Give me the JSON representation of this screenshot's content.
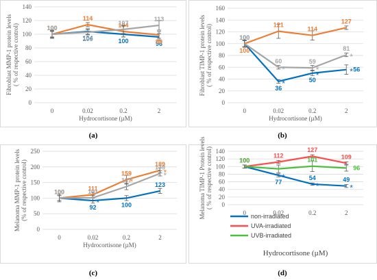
{
  "figure": {
    "letters": [
      "(a)",
      "(b)",
      "(c)",
      "(d)"
    ]
  },
  "chart_data": [
    {
      "type": "line",
      "letter": "(a)",
      "ylabel": "Fibroblast MMP-1 protein levels",
      "ylabel2": "( % of respective control)",
      "xlabel": "Hydrocortisone (µM)",
      "categories": [
        "0",
        "0.02",
        "0.2",
        "2"
      ],
      "ylim": [
        0,
        140
      ],
      "yticks": [
        0,
        20,
        40,
        60,
        80,
        100,
        120,
        140
      ],
      "series": [
        {
          "color": "#0070c0",
          "values": [
            100,
            104,
            100,
            96
          ],
          "errors": [
            6,
            4,
            4,
            5
          ],
          "labels": [
            "100",
            "104",
            "100",
            "96"
          ],
          "label_pos": [
            "above",
            "below",
            "below",
            "below"
          ],
          "stars": []
        },
        {
          "color": "#ed7d31",
          "values": [
            100,
            114,
            104,
            99
          ],
          "errors": [
            4,
            3,
            8,
            5
          ],
          "labels": [
            "100",
            "114",
            "104",
            "99"
          ],
          "label_pos": [
            "above",
            "above",
            "above",
            "below"
          ],
          "stars": []
        },
        {
          "color": "#a5a5a5",
          "values": [
            100,
            103,
            107,
            113
          ],
          "errors": [
            5,
            4,
            6,
            7
          ],
          "labels": [
            "100",
            "103",
            "107",
            "113"
          ],
          "label_pos": [
            "above",
            "below",
            "above",
            "above"
          ],
          "stars": []
        }
      ]
    },
    {
      "type": "line",
      "letter": "(b)",
      "ylabel": "Fibroblast TIMP-1 protein levels",
      "ylabel2": "( % of respective control)",
      "xlabel": "Hydrocortisone (µM)",
      "categories": [
        "0",
        "0.02",
        "0.2",
        "2"
      ],
      "ylim": [
        0,
        160
      ],
      "yticks": [
        0,
        20,
        40,
        60,
        80,
        100,
        120,
        140,
        160
      ],
      "series": [
        {
          "color": "#0070c0",
          "values": [
            100,
            36,
            50,
            56
          ],
          "errors": [
            6,
            3,
            4,
            8
          ],
          "labels": [
            "100",
            "36",
            "50",
            "56"
          ],
          "label_pos": [
            "above",
            "below",
            "below",
            "right"
          ],
          "stars": [
            1,
            2,
            3
          ]
        },
        {
          "color": "#ed7d31",
          "values": [
            100,
            121,
            114,
            127
          ],
          "errors": [
            6,
            12,
            8,
            3
          ],
          "labels": [
            "100",
            "121",
            "114",
            "127"
          ],
          "label_pos": [
            "below",
            "above",
            "above",
            "above"
          ],
          "stars": []
        },
        {
          "color": "#a5a5a5",
          "values": [
            100,
            60,
            59,
            81
          ],
          "errors": [
            5,
            3,
            4,
            3
          ],
          "labels": [
            "100",
            "60",
            "59",
            "81"
          ],
          "label_pos": [
            "above",
            "above",
            "above",
            "above"
          ],
          "stars": [
            1,
            2,
            3
          ]
        }
      ]
    },
    {
      "type": "line",
      "letter": "(c)",
      "ylabel": "Melanoma MMP-1 protein levels",
      "ylabel2": "(% of respective control)",
      "xlabel": "Hydrocortisone (µM)",
      "categories": [
        "0",
        "0.02",
        "0.2",
        "2"
      ],
      "ylim": [
        0,
        250
      ],
      "yticks": [
        0,
        50,
        100,
        150,
        200,
        250
      ],
      "series": [
        {
          "color": "#0070c0",
          "values": [
            100,
            92,
            100,
            123
          ],
          "errors": [
            12,
            8,
            8,
            8
          ],
          "labels": [
            "100",
            "92",
            "100",
            "123"
          ],
          "label_pos": [
            "above",
            "below",
            "below",
            "above"
          ],
          "stars": [
            1
          ]
        },
        {
          "color": "#ed7d31",
          "values": [
            100,
            111,
            159,
            189
          ],
          "errors": [
            8,
            8,
            14,
            8
          ],
          "labels": [
            "100",
            "111",
            "159",
            "189"
          ],
          "label_pos": [
            "above",
            "above",
            "above",
            "above"
          ],
          "stars": [
            2,
            3
          ]
        },
        {
          "color": "#a5a5a5",
          "values": [
            100,
            101,
            137,
            179
          ],
          "errors": [
            8,
            8,
            10,
            8
          ],
          "labels": [
            "100",
            "101",
            "137",
            "179"
          ],
          "label_pos": [
            "above",
            "above",
            "above",
            "above"
          ],
          "stars": [
            3
          ]
        }
      ]
    },
    {
      "type": "line",
      "letter": "(d)",
      "ylabel": "Melanoma TIMP-1 Protein levels",
      "ylabel2": "( % of respective control)",
      "xlabel": "Hydrocortisone (µM)",
      "categories": [
        "0",
        "0.02",
        "0.2",
        "2"
      ],
      "ylim": [
        0,
        140
      ],
      "yticks": [
        0,
        20,
        40,
        60,
        80,
        100,
        120,
        140
      ],
      "legend": "bottom-left",
      "series": [
        {
          "name": "non-irradiated",
          "color": "#0070c0",
          "values": [
            100,
            77,
            54,
            49
          ],
          "errors": [
            4,
            4,
            3,
            4
          ],
          "labels": [
            "100",
            "77",
            "54",
            "49"
          ],
          "label_pos": [
            "above",
            "below",
            "above",
            "above"
          ],
          "stars": [
            1,
            2,
            3
          ]
        },
        {
          "name": "UVA-irradiated",
          "color": "#ff4b4b",
          "values": [
            100,
            112,
            127,
            109
          ],
          "errors": [
            4,
            4,
            4,
            3
          ],
          "labels": [
            "100",
            "112",
            "127",
            "109"
          ],
          "label_pos": [
            "above",
            "above",
            "above",
            "above"
          ],
          "stars": []
        },
        {
          "name": "UVB-irradiated",
          "color": "#4cbf3c",
          "values": [
            100,
            94,
            101,
            96
          ],
          "errors": [
            4,
            10,
            14,
            8
          ],
          "labels": [
            "100",
            "",
            "101",
            "96"
          ],
          "label_pos": [
            "above",
            "above",
            "above",
            "right"
          ],
          "stars": []
        }
      ]
    }
  ]
}
